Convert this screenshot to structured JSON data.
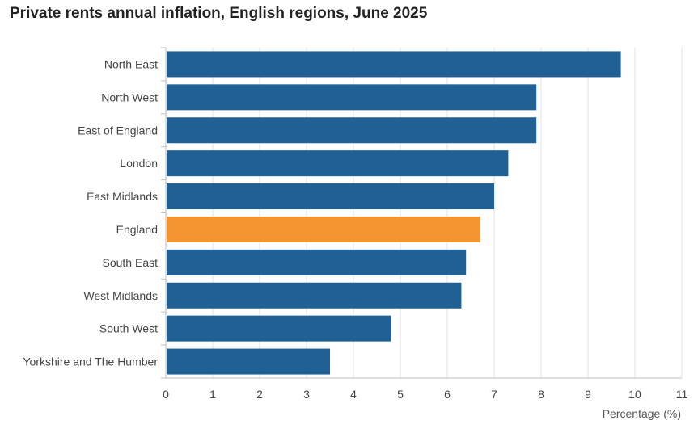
{
  "chart_data": {
    "type": "bar",
    "orientation": "horizontal",
    "title": "Private rents annual inflation, English regions, June 2025",
    "xlabel": "Percentage (%)",
    "ylabel": "",
    "categories": [
      "North East",
      "North West",
      "East of England",
      "London",
      "East Midlands",
      "England",
      "South East",
      "West Midlands",
      "South West",
      "Yorkshire and The Humber"
    ],
    "values": [
      9.7,
      7.9,
      7.9,
      7.3,
      7.0,
      6.7,
      6.4,
      6.3,
      4.8,
      3.5
    ],
    "xlim": [
      0,
      11
    ],
    "xticks": [
      0,
      1,
      2,
      3,
      4,
      5,
      6,
      7,
      8,
      9,
      10,
      11
    ],
    "grid": true,
    "legend": "none",
    "colors": {
      "default_bar": "#206095",
      "highlight_bar": "#F39431",
      "grid": "#E0E0E0",
      "axis": "#BEBEBE"
    },
    "highlight_category": "England"
  }
}
